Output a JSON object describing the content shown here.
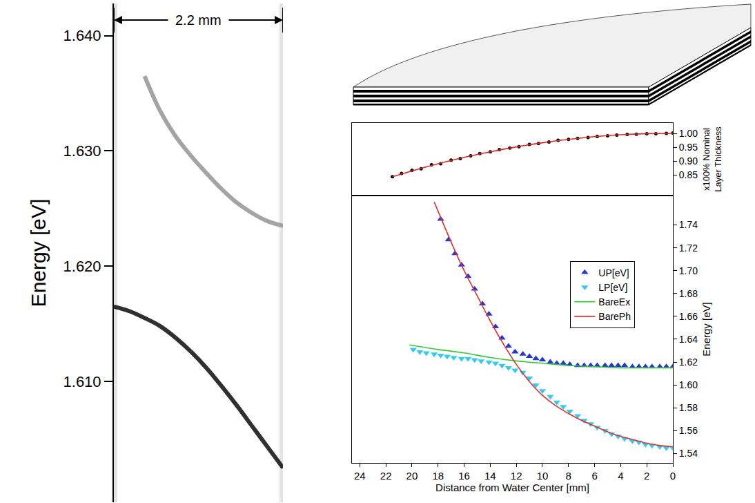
{
  "chart_data": [
    {
      "type": "line",
      "y_label": "Energy [eV]",
      "annotations": [
        "2.2 mm"
      ],
      "x": [
        0,
        0.2,
        0.4,
        0.6,
        0.8,
        1.0,
        1.2,
        1.4,
        1.6,
        1.8,
        2.0,
        2.2
      ],
      "series": [
        {
          "color": "#9a9a9a",
          "line_style": "solid",
          "values": [
            null,
            null,
            1.6365,
            1.6335,
            1.6313,
            1.6296,
            1.6281,
            1.6267,
            1.6255,
            1.6246,
            1.6239,
            1.6235
          ]
        },
        {
          "color": "#1a1a1a",
          "line_style": "solid",
          "values": [
            1.6165,
            1.6161,
            1.6155,
            1.6148,
            1.6138,
            1.6126,
            1.6112,
            1.6096,
            1.6079,
            1.6061,
            1.6043,
            1.6025
          ]
        }
      ],
      "xlim": [
        0,
        2.2
      ],
      "xticks": [],
      "ylim": [
        1.5995,
        1.6428
      ],
      "yticks": [
        {
          "value": 1.61,
          "label": "1.610"
        },
        {
          "value": 1.62,
          "label": "1.620"
        },
        {
          "value": 1.63,
          "label": "1.630"
        },
        {
          "value": 1.64,
          "label": "1.640"
        }
      ],
      "tick_labels": "y",
      "grid": false
    },
    {
      "type": "scatter",
      "y_label": "x100% Nominal Layer Thickness",
      "series": [
        {
          "type": "scatter",
          "marker": "circle",
          "color": "#000000",
          "x": [
            21.5,
            20.8,
            20.0,
            19.3,
            18.5,
            17.8,
            17.0,
            16.3,
            15.5,
            14.8,
            14.0,
            13.3,
            12.5,
            11.8,
            11.0,
            10.3,
            9.5,
            8.8,
            8.0,
            7.3,
            6.5,
            5.8,
            5.0,
            4.3,
            3.5,
            2.8,
            2.0,
            1.3,
            0.5,
            0
          ],
          "values": [
            0.843,
            0.855,
            0.866,
            0.872,
            0.886,
            0.89,
            0.903,
            0.909,
            0.919,
            0.927,
            0.933,
            0.941,
            0.947,
            0.952,
            0.96,
            0.963,
            0.969,
            0.975,
            0.978,
            0.982,
            0.985,
            0.989,
            0.991,
            0.994,
            0.996,
            0.997,
            0.999,
            0.999,
            1.0,
            1.001
          ]
        },
        {
          "type": "line",
          "line_style": "solid",
          "color": "#d42a2a",
          "x": [
            21.5,
            20,
            18,
            16,
            14,
            12,
            10,
            8,
            6,
            4,
            2,
            0
          ],
          "values": [
            0.843,
            0.864,
            0.89,
            0.913,
            0.933,
            0.951,
            0.966,
            0.978,
            0.988,
            0.995,
            0.999,
            1.0
          ]
        }
      ],
      "xlim": [
        24.6,
        0
      ],
      "xticks": [
        0,
        2,
        4,
        6,
        8,
        10,
        12,
        14,
        16,
        18,
        20,
        22,
        24
      ],
      "ylim": [
        0.775,
        1.0375
      ],
      "yticks": [
        0.85,
        {
          "value": 0.9,
          "label": "0.90"
        },
        0.95,
        {
          "value": 1.0,
          "label": "1.00"
        }
      ],
      "tick_labels": "y",
      "grid": false
    },
    {
      "type": "scatter",
      "x_label": "Distance from Water Center [mm]",
      "y_label": "Energy [eV]",
      "series": [
        {
          "name": "UP[eV]",
          "type": "scatter",
          "marker": "triangle-up",
          "color": "#2436d6",
          "x": [
            17.8,
            17.2,
            16.7,
            16.2,
            15.7,
            15.2,
            14.6,
            14.1,
            13.6,
            13.1,
            12.6,
            12.1,
            11.5,
            11.0,
            10.5,
            10.0,
            9.4,
            8.9,
            8.4,
            7.9,
            7.3,
            6.8,
            6.3,
            5.8,
            5.2,
            4.7,
            4.2,
            3.7,
            3.1,
            2.6,
            2.1,
            1.6,
            1.0,
            0.5,
            0
          ],
          "values": [
            1.745,
            1.727,
            1.715,
            1.705,
            1.695,
            1.684,
            1.671,
            1.662,
            1.651,
            1.641,
            1.634,
            1.629,
            1.627,
            1.625,
            1.623,
            1.622,
            1.62,
            1.619,
            1.619,
            1.618,
            1.617,
            1.617,
            1.617,
            1.617,
            1.617,
            1.617,
            1.617,
            1.617,
            1.616,
            1.616,
            1.616,
            1.616,
            1.616,
            1.616,
            1.616
          ]
        },
        {
          "name": "LP[eV]",
          "type": "scatter",
          "marker": "triangle-down",
          "color": "#33ccee",
          "x": [
            19.9,
            19.4,
            18.9,
            18.3,
            17.8,
            17.3,
            16.8,
            16.2,
            15.7,
            15.2,
            14.7,
            14.1,
            13.6,
            13.1,
            12.6,
            12.1,
            11.5,
            11.0,
            10.5,
            10.0,
            9.4,
            8.9,
            8.4,
            7.9,
            7.3,
            6.8,
            6.3,
            5.8,
            5.2,
            4.7,
            4.2,
            3.7,
            3.1,
            2.6,
            2.1,
            1.6,
            1.0,
            0.5,
            0
          ],
          "values": [
            1.631,
            1.629,
            1.628,
            1.627,
            1.626,
            1.625,
            1.624,
            1.623,
            1.623,
            1.622,
            1.621,
            1.62,
            1.619,
            1.617,
            1.615,
            1.613,
            1.611,
            1.606,
            1.6,
            1.595,
            1.59,
            1.585,
            1.581,
            1.577,
            1.573,
            1.569,
            1.566,
            1.563,
            1.56,
            1.557,
            1.555,
            1.553,
            1.551,
            1.55,
            1.548,
            1.547,
            1.546,
            1.545,
            1.545
          ]
        },
        {
          "name": "BareEx",
          "type": "line",
          "line_style": "solid",
          "color": "#33cc33",
          "x": [
            20.2,
            18,
            16,
            14,
            12,
            10,
            8,
            6,
            4,
            2,
            0
          ],
          "values": [
            1.635,
            1.631,
            1.628,
            1.624,
            1.621,
            1.619,
            1.617,
            1.616,
            1.615,
            1.615,
            1.615
          ]
        },
        {
          "name": "BarePh",
          "type": "line",
          "line_style": "solid",
          "color": "#e03030",
          "x": [
            18.3,
            18,
            17,
            16,
            15,
            14,
            13,
            12,
            11,
            10,
            9,
            8,
            7,
            6,
            5,
            4,
            3,
            2,
            1,
            0
          ],
          "values": [
            1.76,
            1.752,
            1.725,
            1.7,
            1.678,
            1.656,
            1.636,
            1.618,
            1.603,
            1.591,
            1.582,
            1.575,
            1.569,
            1.564,
            1.559,
            1.555,
            1.552,
            1.549,
            1.547,
            1.546
          ]
        }
      ],
      "xlim": [
        24.6,
        0
      ],
      "xticks": [
        0,
        2,
        4,
        6,
        8,
        10,
        12,
        14,
        16,
        18,
        20,
        22,
        24
      ],
      "ylim": [
        1.5318,
        1.7657
      ],
      "yticks": [
        1.54,
        1.56,
        1.58,
        {
          "value": 1.6,
          "label": "1.60"
        },
        1.62,
        1.64,
        1.66,
        1.68,
        {
          "value": 1.7,
          "label": "1.70"
        },
        1.72,
        1.74
      ],
      "legend": "upper right",
      "grid": false
    }
  ]
}
